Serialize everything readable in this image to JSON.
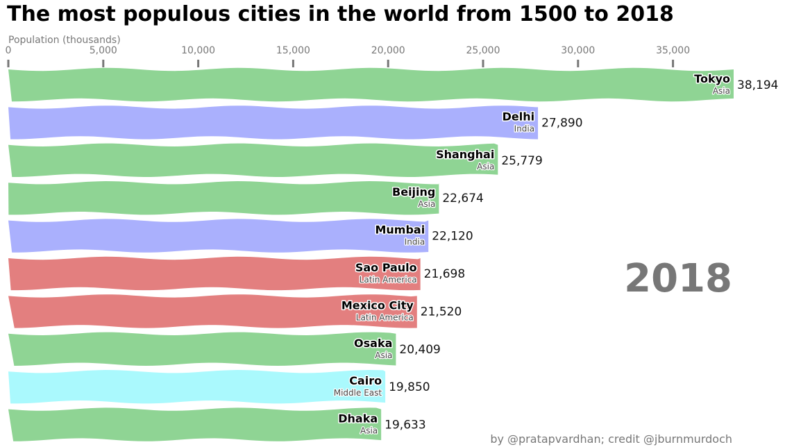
{
  "colors": {
    "Asia": "#8fd494",
    "India": "#aab0fd",
    "Latin America": "#e37f7f",
    "Middle East": "#aaf9fd",
    "text_grey": "#777777"
  },
  "chart_data": {
    "type": "bar",
    "orientation": "horizontal",
    "title": "The most populous cities in the world from 1500 to 2018",
    "xlabel": "Population (thousands)",
    "xlim": [
      0,
      38194
    ],
    "x_ticks": [
      0,
      5000,
      10000,
      15000,
      20000,
      25000,
      30000,
      35000
    ],
    "x_tick_labels": [
      "0",
      "5,000",
      "10,000",
      "15,000",
      "20,000",
      "25,000",
      "30,000",
      "35,000"
    ],
    "grid": false,
    "legend": "none",
    "year": "2018",
    "credit": "by @pratapvardhan; credit @jburnmurdoch",
    "bars": [
      {
        "city": "Tokyo",
        "region": "Asia",
        "value": 38194,
        "value_label": "38,194"
      },
      {
        "city": "Delhi",
        "region": "India",
        "value": 27890,
        "value_label": "27,890"
      },
      {
        "city": "Shanghai",
        "region": "Asia",
        "value": 25779,
        "value_label": "25,779"
      },
      {
        "city": "Beijing",
        "region": "Asia",
        "value": 22674,
        "value_label": "22,674"
      },
      {
        "city": "Mumbai",
        "region": "India",
        "value": 22120,
        "value_label": "22,120"
      },
      {
        "city": "Sao Paulo",
        "region": "Latin America",
        "value": 21698,
        "value_label": "21,698"
      },
      {
        "city": "Mexico City",
        "region": "Latin America",
        "value": 21520,
        "value_label": "21,520"
      },
      {
        "city": "Osaka",
        "region": "Asia",
        "value": 20409,
        "value_label": "20,409"
      },
      {
        "city": "Cairo",
        "region": "Middle East",
        "value": 19850,
        "value_label": "19,850"
      },
      {
        "city": "Dhaka",
        "region": "Asia",
        "value": 19633,
        "value_label": "19,633"
      }
    ]
  }
}
